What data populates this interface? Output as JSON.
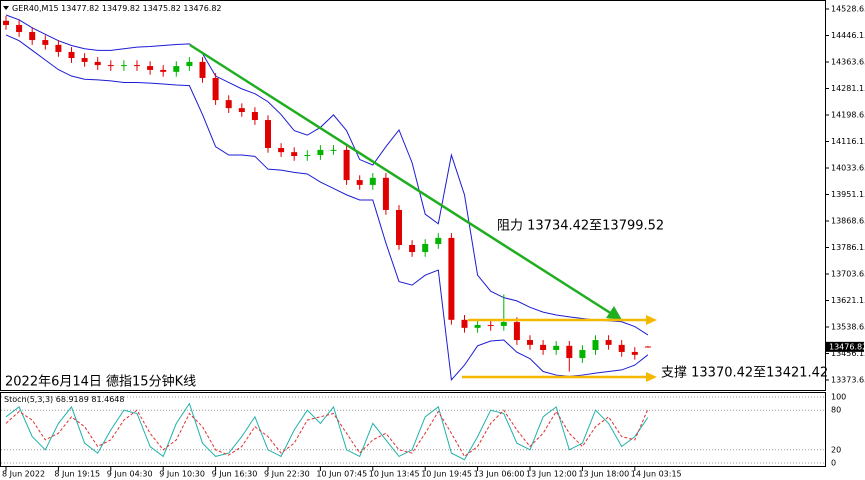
{
  "chart_data": [
    {
      "type": "candlestick",
      "title": "2022年6月14日 德指15分钟K线",
      "symbol": "GER40,M15",
      "categories": [
        "8 Jun 2022",
        null,
        null,
        null,
        "8 Jun 19:15",
        null,
        null,
        null,
        "9 Jun 04:30",
        null,
        null,
        null,
        "9 Jun 10:30",
        null,
        null,
        null,
        "9 Jun 16:30",
        null,
        null,
        null,
        "9 Jun 22:30",
        null,
        null,
        null,
        "10 Jun 07:45",
        null,
        null,
        null,
        "10 Jun 13:45",
        null,
        null,
        null,
        "10 Jun 19:45",
        null,
        null,
        null,
        "13 Jun 06:00",
        null,
        null,
        null,
        "13 Jun 12:00",
        null,
        null,
        null,
        "13 Jun 18:00",
        null,
        null,
        null,
        "14 Jun 03:15",
        null
      ],
      "open": [
        14492,
        14479,
        14457,
        14432,
        14417,
        14395,
        14376,
        14364,
        14354,
        14351,
        14354,
        14351,
        14339,
        14333,
        14351,
        14364,
        14314,
        14245,
        14220,
        14208,
        14183,
        14096,
        14083,
        14071,
        14074,
        14090,
        14090,
        13996,
        13981,
        14003,
        13903,
        13794,
        13772,
        13797,
        13816,
        13561,
        13536,
        13545,
        13542,
        13554,
        13498,
        13483,
        13467,
        13480,
        13442,
        13467,
        13498,
        13483,
        13461,
        13477.82
      ],
      "high": [
        14507,
        14494,
        14472,
        14447,
        14432,
        14410,
        14391,
        14379,
        14369,
        14369,
        14369,
        14366,
        14354,
        14366,
        14379,
        14379,
        14329,
        14260,
        14235,
        14223,
        14198,
        14111,
        14098,
        14089,
        14105,
        14105,
        14105,
        14011,
        14018,
        14018,
        13918,
        13809,
        13812,
        13831,
        13831,
        13576,
        13560,
        13560,
        13640,
        13569,
        13513,
        13498,
        13495,
        13495,
        13482,
        13513,
        13513,
        13498,
        13476,
        13479.82
      ],
      "low": [
        14464,
        14442,
        14417,
        14402,
        14380,
        14361,
        14349,
        14339,
        14336,
        14336,
        14336,
        14324,
        14318,
        14318,
        14336,
        14299,
        14230,
        14205,
        14193,
        14168,
        14081,
        14068,
        14056,
        14056,
        14059,
        14075,
        13981,
        13966,
        13966,
        13888,
        13779,
        13757,
        13757,
        13782,
        13546,
        13521,
        13521,
        13527,
        13527,
        13483,
        13468,
        13452,
        13452,
        13400,
        13427,
        13452,
        13468,
        13446,
        13437,
        13475.82
      ],
      "close": [
        14479,
        14457,
        14432,
        14417,
        14395,
        14376,
        14364,
        14354,
        14351,
        14354,
        14351,
        14339,
        14333,
        14351,
        14364,
        14314,
        14245,
        14220,
        14208,
        14183,
        14096,
        14083,
        14071,
        14074,
        14090,
        14090,
        13996,
        13981,
        14003,
        13903,
        13794,
        13772,
        13797,
        13816,
        13561,
        13536,
        13545,
        13542,
        13554,
        13498,
        13483,
        13467,
        13480,
        13442,
        13467,
        13498,
        13483,
        13461,
        13452,
        13476.82
      ],
      "up_color": "#00b400",
      "down_color": "#e00000",
      "band_color": "#1c1cd4",
      "bands": {
        "upper": [
          14510,
          14495,
          14470,
          14450,
          14430,
          14415,
          14405,
          14400,
          14400,
          14405,
          14410,
          14412,
          14415,
          14418,
          14420,
          14390,
          14320,
          14300,
          14280,
          14265,
          14240,
          14200,
          14150,
          14136,
          14160,
          14199,
          14150,
          14060,
          14043,
          14100,
          14152,
          14050,
          13890,
          13860,
          14074,
          13950,
          13700,
          13650,
          13630,
          13620,
          13600,
          13585,
          13576,
          13570,
          13565,
          13560,
          13558,
          13555,
          13540,
          13514
        ],
        "lower": [
          14448,
          14430,
          14400,
          14370,
          14340,
          14320,
          14310,
          14308,
          14305,
          14300,
          14300,
          14298,
          14295,
          14292,
          14290,
          14200,
          14100,
          14074,
          14074,
          14070,
          14030,
          14027,
          14020,
          14015,
          13990,
          13970,
          13950,
          13934,
          13934,
          13800,
          13680,
          13669,
          13700,
          13716,
          13374,
          13420,
          13480,
          13495,
          13498,
          13460,
          13440,
          13400,
          13389,
          13385,
          13389,
          13395,
          13400,
          13405,
          13420,
          13452
        ]
      },
      "ylim": [
        13342.5,
        14556.7
      ],
      "yticks": [
        13373.65,
        13456.15,
        13538.65,
        13621.15,
        13703.65,
        13786.15,
        13868.65,
        13951.15,
        14033.65,
        14116.15,
        14198.65,
        14281.15,
        14363.65,
        14446.15,
        14528.65
      ],
      "annotations": [
        "阻力 13734.42至13799.52",
        "支撑 13370.42至13421.42"
      ]
    },
    {
      "type": "line",
      "title": "Stoch(5,3,3)",
      "series": [
        {
          "color": "#20b2aa",
          "values": [
            70,
            85,
            40,
            20,
            60,
            85,
            30,
            15,
            50,
            80,
            75,
            25,
            10,
            60,
            90,
            30,
            10,
            15,
            40,
            70,
            20,
            10,
            50,
            80,
            60,
            85,
            20,
            10,
            60,
            35,
            10,
            20,
            70,
            85,
            15,
            5,
            40,
            80,
            75,
            30,
            20,
            70,
            85,
            20,
            30,
            80,
            60,
            25,
            40,
            68.9189
          ]
        },
        {
          "color": "#e03030",
          "values": [
            60,
            78,
            65,
            35,
            45,
            70,
            55,
            25,
            35,
            65,
            80,
            45,
            20,
            35,
            75,
            55,
            20,
            12,
            25,
            55,
            40,
            15,
            30,
            65,
            70,
            75,
            45,
            15,
            35,
            45,
            20,
            15,
            45,
            78,
            45,
            10,
            25,
            60,
            80,
            50,
            25,
            45,
            78,
            45,
            25,
            55,
            70,
            40,
            35,
            81.4648
          ]
        }
      ],
      "ylim": [
        0,
        100
      ],
      "yticks": [
        0,
        20,
        80,
        100
      ],
      "grid": true
    }
  ]
}
